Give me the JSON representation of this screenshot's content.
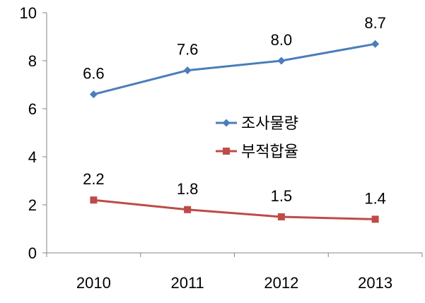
{
  "chart_data": {
    "type": "line",
    "categories": [
      "2010",
      "2011",
      "2012",
      "2013"
    ],
    "series": [
      {
        "name": "조사물량",
        "values": [
          6.6,
          7.6,
          8.0,
          8.7
        ],
        "labels": [
          "6.6",
          "7.6",
          "8.0",
          "8.7"
        ],
        "color": "#4A7EBB",
        "marker": "diamond"
      },
      {
        "name": "부적합율",
        "values": [
          2.2,
          1.8,
          1.5,
          1.4
        ],
        "labels": [
          "2.2",
          "1.8",
          "1.5",
          "1.4"
        ],
        "color": "#BE4B48",
        "marker": "square"
      }
    ],
    "ylim": [
      0,
      10
    ],
    "yticks": [
      0,
      2,
      4,
      6,
      8,
      10
    ],
    "ytick_labels": [
      "0",
      "2",
      "4",
      "6",
      "8",
      "10"
    ],
    "grid": false,
    "legend_position": "center"
  }
}
